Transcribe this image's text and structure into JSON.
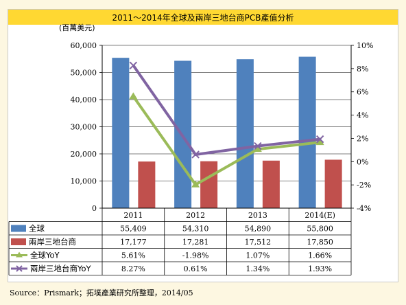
{
  "title": "2011～2014年全球及兩岸三地台商PCB產值分析",
  "unit_label": "(百萬美元)",
  "source": "Source：Prismark；拓墣產業研究所整理，2014/05",
  "colors": {
    "background": "#fdf7e1",
    "title_bar": "#ffd832",
    "global_bar": "#4f81bd",
    "cross_strait_bar": "#c0504d",
    "global_yoy": "#9bbb59",
    "cross_strait_yoy": "#8064a2"
  },
  "chart_data": {
    "type": "bar",
    "categories": [
      "2011",
      "2012",
      "2013",
      "2014(E)"
    ],
    "y_left": {
      "ylim": [
        0,
        60000
      ],
      "ticks": [
        "0",
        "10,000",
        "20,000",
        "30,000",
        "40,000",
        "50,000",
        "60,000"
      ]
    },
    "y_right": {
      "ylim": [
        -4,
        10
      ],
      "ticks": [
        "-4%",
        "-2%",
        "0%",
        "2%",
        "4%",
        "6%",
        "8%",
        "10%"
      ]
    },
    "series": [
      {
        "name": "全球",
        "kind": "bar",
        "axis": "left",
        "values": [
          55409,
          54310,
          54890,
          55800
        ],
        "labels": [
          "55,409",
          "54,310",
          "54,890",
          "55,800"
        ]
      },
      {
        "name": "兩岸三地台商",
        "kind": "bar",
        "axis": "left",
        "values": [
          17177,
          17281,
          17512,
          17850
        ],
        "labels": [
          "17,177",
          "17,281",
          "17,512",
          "17,850"
        ]
      },
      {
        "name": "全球YoY",
        "kind": "line",
        "axis": "right",
        "values": [
          5.61,
          -1.98,
          1.07,
          1.66
        ],
        "labels": [
          "5.61%",
          "-1.98%",
          "1.07%",
          "1.66%"
        ]
      },
      {
        "name": "兩岸三地台商YoY",
        "kind": "line",
        "axis": "right",
        "values": [
          8.27,
          0.61,
          1.34,
          1.93
        ],
        "labels": [
          "8.27%",
          "0.61%",
          "1.34%",
          "1.93%"
        ]
      }
    ],
    "grid": true,
    "legend": "data table below chart"
  }
}
